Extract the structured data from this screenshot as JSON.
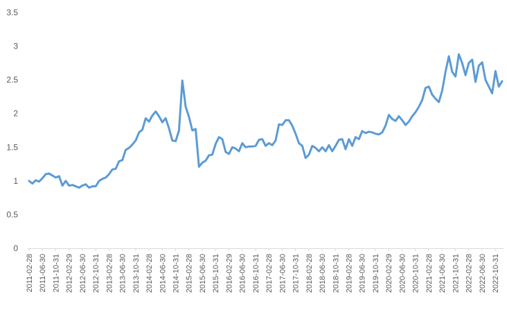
{
  "chart_data": {
    "type": "line",
    "title": "",
    "xlabel": "",
    "ylabel": "",
    "ylim": [
      0,
      3.5
    ],
    "yticks": [
      "0",
      "0.5",
      "1",
      "1.5",
      "2",
      "2.5",
      "3",
      "3.5"
    ],
    "grid": false,
    "legend": "none",
    "line_color": "#5B9BD5",
    "axis_color": "#d9d9d9",
    "x_tick_labels": [
      "2011-02-28",
      "2011-06-30",
      "2011-10-31",
      "2012-02-29",
      "2012-06-30",
      "2012-10-31",
      "2013-02-28",
      "2013-06-30",
      "2013-10-31",
      "2014-02-28",
      "2014-06-30",
      "2014-10-31",
      "2015-02-28",
      "2015-06-30",
      "2015-10-31",
      "2016-02-29",
      "2016-06-30",
      "2016-10-31",
      "2017-02-28",
      "2017-06-30",
      "2017-10-31",
      "2018-02-28",
      "2018-06-30",
      "2018-10-31",
      "2019-02-28",
      "2019-06-30",
      "2019-10-31",
      "2020-02-29",
      "2020-06-30",
      "2020-10-31",
      "2021-02-28",
      "2021-06-30",
      "2021-10-31",
      "2022-02-28",
      "2022-06-30",
      "2022-10-31"
    ],
    "series": [
      {
        "values": [
          1.0,
          0.96,
          1.01,
          0.99,
          1.04,
          1.1,
          1.11,
          1.08,
          1.05,
          1.07,
          0.93,
          1.0,
          0.93,
          0.94,
          0.92,
          0.9,
          0.93,
          0.95,
          0.9,
          0.92,
          0.92,
          1.0,
          1.03,
          1.05,
          1.1,
          1.17,
          1.18,
          1.29,
          1.31,
          1.46,
          1.49,
          1.54,
          1.6,
          1.72,
          1.76,
          1.93,
          1.88,
          1.97,
          2.03,
          1.96,
          1.87,
          1.93,
          1.78,
          1.6,
          1.59,
          1.75,
          2.49,
          2.1,
          1.95,
          1.75,
          1.77,
          1.21,
          1.27,
          1.3,
          1.38,
          1.39,
          1.55,
          1.65,
          1.62,
          1.43,
          1.4,
          1.5,
          1.48,
          1.44,
          1.56,
          1.5,
          1.51,
          1.51,
          1.52,
          1.61,
          1.62,
          1.52,
          1.56,
          1.53,
          1.6,
          1.84,
          1.83,
          1.9,
          1.9,
          1.82,
          1.7,
          1.56,
          1.52,
          1.34,
          1.39,
          1.52,
          1.49,
          1.44,
          1.5,
          1.44,
          1.53,
          1.44,
          1.52,
          1.61,
          1.62,
          1.47,
          1.62,
          1.52,
          1.65,
          1.62,
          1.74,
          1.71,
          1.73,
          1.72,
          1.7,
          1.69,
          1.72,
          1.82,
          1.98,
          1.92,
          1.89,
          1.96,
          1.9,
          1.83,
          1.88,
          1.96,
          2.02,
          2.1,
          2.2,
          2.38,
          2.4,
          2.28,
          2.22,
          2.17,
          2.34,
          2.62,
          2.85,
          2.62,
          2.55,
          2.88,
          2.75,
          2.57,
          2.75,
          2.8,
          2.47,
          2.71,
          2.76,
          2.5,
          2.4,
          2.3,
          2.63,
          2.4,
          2.48
        ]
      }
    ]
  }
}
